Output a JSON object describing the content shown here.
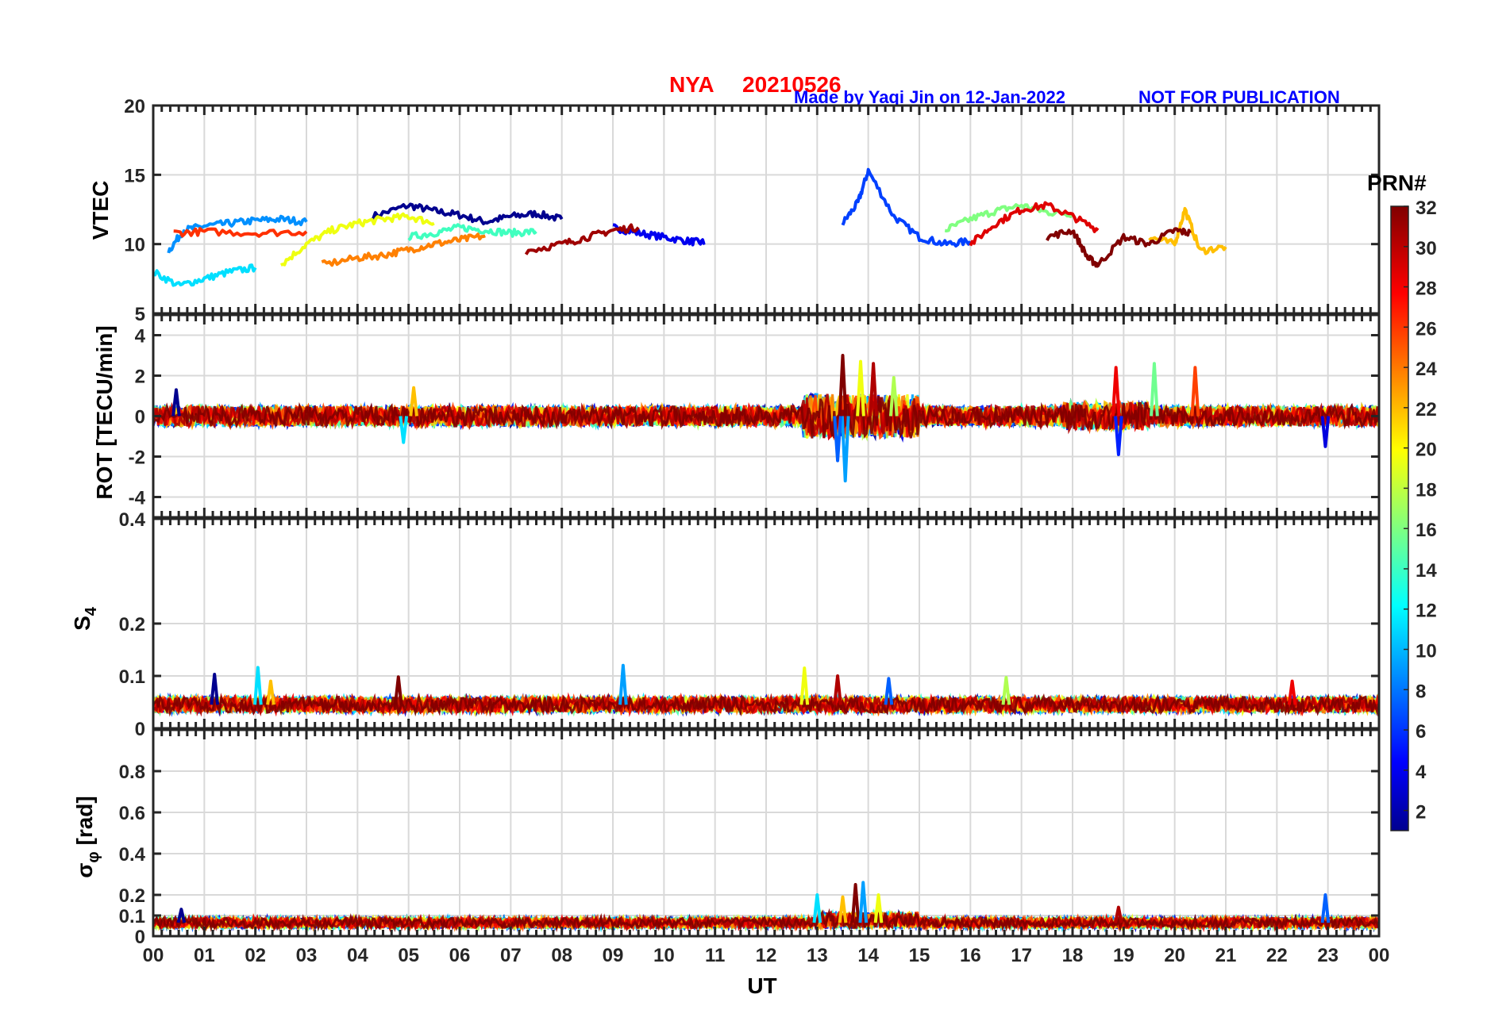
{
  "header": {
    "station": "NYA",
    "date": "20210526",
    "credit": "Made by Yaqi Jin on 12-Jan-2022",
    "notice": "NOT FOR PUBLICATION"
  },
  "colorbar": {
    "label": "PRN#",
    "ticks": [
      "2",
      "4",
      "6",
      "8",
      "10",
      "12",
      "14",
      "16",
      "18",
      "20",
      "22",
      "24",
      "26",
      "28",
      "30",
      "32"
    ],
    "range": [
      1,
      32
    ],
    "colormap": "jet"
  },
  "xaxis": {
    "label": "UT",
    "ticks": [
      "00",
      "01",
      "02",
      "03",
      "04",
      "05",
      "06",
      "07",
      "08",
      "09",
      "10",
      "11",
      "12",
      "13",
      "14",
      "15",
      "16",
      "17",
      "18",
      "19",
      "20",
      "21",
      "22",
      "23",
      "00"
    ],
    "range": [
      0,
      24
    ]
  },
  "chart_data": [
    {
      "type": "line",
      "ylabel": "VTEC",
      "ylim": [
        5,
        20
      ],
      "yticks": [
        "20",
        "15",
        "10",
        "5"
      ],
      "grid": true,
      "series": [
        {
          "prn": 2,
          "color": "#00008f",
          "x": [
            4.3,
            5.0,
            5.5,
            6.0,
            6.5,
            7.0,
            7.5,
            8.0
          ],
          "y": [
            12.0,
            12.8,
            12.4,
            12.1,
            11.6,
            12.0,
            12.2,
            11.8
          ]
        },
        {
          "prn": 5,
          "color": "#0000ef",
          "x": [
            9.0,
            9.5,
            10.0,
            10.5,
            10.8
          ],
          "y": [
            11.2,
            10.8,
            10.5,
            10.2,
            10.1
          ]
        },
        {
          "prn": 7,
          "color": "#0040ff",
          "x": [
            13.5,
            13.8,
            14.0,
            14.5,
            15.0,
            15.5,
            16.0
          ],
          "y": [
            11.5,
            13.0,
            15.3,
            12.0,
            10.5,
            10.0,
            10.2
          ]
        },
        {
          "prn": 9,
          "color": "#0090ff",
          "x": [
            0.3,
            0.6,
            1.0,
            1.5,
            2.0,
            2.5,
            3.0
          ],
          "y": [
            9.5,
            11.0,
            11.3,
            11.5,
            11.7,
            11.8,
            11.6
          ]
        },
        {
          "prn": 11,
          "color": "#00dfff",
          "x": [
            0.0,
            0.5,
            1.0,
            1.5,
            2.0
          ],
          "y": [
            8.0,
            7.0,
            7.5,
            8.0,
            8.3
          ]
        },
        {
          "prn": 14,
          "color": "#40ffbf",
          "x": [
            5.0,
            5.5,
            6.0,
            6.5,
            7.0,
            7.5
          ],
          "y": [
            10.5,
            10.8,
            11.2,
            11.0,
            10.8,
            10.9
          ]
        },
        {
          "prn": 16,
          "color": "#80ff80",
          "x": [
            15.5,
            16.0,
            16.5,
            17.0,
            17.5,
            18.0
          ],
          "y": [
            11.0,
            11.8,
            12.4,
            12.8,
            12.3,
            12.2
          ]
        },
        {
          "prn": 19,
          "color": "#efff10",
          "x": [
            2.5,
            3.0,
            3.5,
            4.0,
            4.5,
            5.0,
            5.5
          ],
          "y": [
            8.5,
            10.0,
            11.0,
            11.5,
            11.8,
            12.0,
            11.5
          ]
        },
        {
          "prn": 22,
          "color": "#ffbf00",
          "x": [
            19.5,
            20.0,
            20.2,
            20.5,
            21.0
          ],
          "y": [
            10.5,
            10.0,
            12.5,
            9.5,
            9.8
          ]
        },
        {
          "prn": 24,
          "color": "#ff8000",
          "x": [
            3.3,
            4.0,
            4.5,
            5.0,
            5.5,
            6.0,
            6.5
          ],
          "y": [
            8.5,
            9.0,
            9.2,
            9.6,
            10.0,
            10.3,
            10.6
          ]
        },
        {
          "prn": 27,
          "color": "#ff3000",
          "x": [
            0.4,
            1.0,
            2.0,
            3.0
          ],
          "y": [
            10.8,
            10.9,
            10.8,
            10.9
          ]
        },
        {
          "prn": 29,
          "color": "#df0000",
          "x": [
            16.0,
            16.5,
            17.0,
            17.5,
            18.0,
            18.5
          ],
          "y": [
            10.0,
            11.5,
            12.5,
            12.8,
            12.0,
            11.0
          ]
        },
        {
          "prn": 31,
          "color": "#9f0000",
          "x": [
            7.3,
            8.0,
            8.5,
            9.0,
            9.5
          ],
          "y": [
            9.5,
            10.0,
            10.5,
            11.0,
            11.2
          ]
        },
        {
          "prn": 32,
          "color": "#800000",
          "x": [
            17.5,
            18.0,
            18.3,
            18.5,
            19.0,
            19.5,
            20.0,
            20.3
          ],
          "y": [
            10.5,
            11.0,
            9.0,
            8.5,
            10.5,
            10.0,
            11.0,
            10.8
          ]
        }
      ]
    },
    {
      "type": "line",
      "ylabel": "ROT [TECU/min]",
      "ylim": [
        -5,
        5
      ],
      "yticks": [
        "4",
        "2",
        "0",
        "-2",
        "-4"
      ],
      "grid": true,
      "baseline": 0,
      "typical_band": [
        -0.5,
        0.5
      ],
      "spikes": [
        {
          "x": 0.45,
          "y": 1.3
        },
        {
          "x": 4.9,
          "y": -1.3
        },
        {
          "x": 5.1,
          "y": 1.4
        },
        {
          "x": 13.5,
          "y": 3.0
        },
        {
          "x": 13.55,
          "y": -3.2
        },
        {
          "x": 13.85,
          "y": 2.7
        },
        {
          "x": 14.1,
          "y": 2.6
        },
        {
          "x": 13.4,
          "y": -2.2
        },
        {
          "x": 14.5,
          "y": 1.9
        },
        {
          "x": 18.85,
          "y": 2.4
        },
        {
          "x": 18.9,
          "y": -1.9
        },
        {
          "x": 19.6,
          "y": 2.6
        },
        {
          "x": 20.4,
          "y": 2.4
        },
        {
          "x": 22.95,
          "y": -1.5
        }
      ]
    },
    {
      "type": "line",
      "ylabel": "S4",
      "ylim": [
        0,
        0.4
      ],
      "yticks": [
        "0.4",
        "0.2",
        "0.1",
        "0"
      ],
      "grid": true,
      "typical_band": [
        0.03,
        0.06
      ],
      "spikes": [
        {
          "x": 1.2,
          "y": 0.103
        },
        {
          "x": 2.05,
          "y": 0.116
        },
        {
          "x": 2.3,
          "y": 0.09
        },
        {
          "x": 4.8,
          "y": 0.098
        },
        {
          "x": 9.2,
          "y": 0.12
        },
        {
          "x": 12.75,
          "y": 0.115
        },
        {
          "x": 13.4,
          "y": 0.1
        },
        {
          "x": 14.4,
          "y": 0.095
        },
        {
          "x": 16.7,
          "y": 0.097
        },
        {
          "x": 22.3,
          "y": 0.09
        }
      ]
    },
    {
      "type": "line",
      "ylabel": "σφ [rad]",
      "ylim": [
        0,
        1
      ],
      "yticks": [
        "0.8",
        "0.6",
        "0.4",
        "0.2",
        "0.1",
        "0"
      ],
      "grid": true,
      "typical_band": [
        0.04,
        0.09
      ],
      "spikes": [
        {
          "x": 0.55,
          "y": 0.13
        },
        {
          "x": 13.0,
          "y": 0.2
        },
        {
          "x": 13.5,
          "y": 0.19
        },
        {
          "x": 13.75,
          "y": 0.25
        },
        {
          "x": 13.9,
          "y": 0.26
        },
        {
          "x": 14.2,
          "y": 0.2
        },
        {
          "x": 18.9,
          "y": 0.14
        },
        {
          "x": 22.95,
          "y": 0.2
        }
      ]
    }
  ]
}
